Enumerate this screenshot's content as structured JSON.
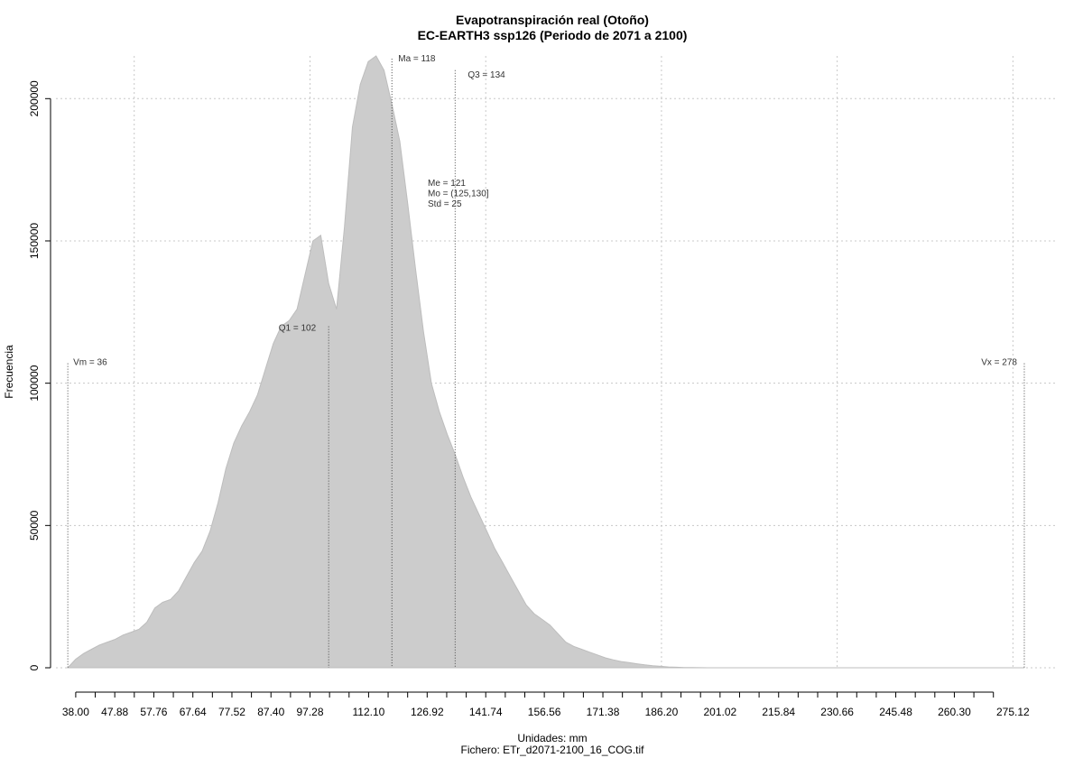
{
  "chart_data": {
    "type": "area",
    "title": "Evapotranspiración real (Otoño)",
    "subtitle": "EC-EARTH3 ssp126 (Periodo de 2071 a 2100)",
    "xlabel": "Unidades: mm",
    "footer": "Fichero: ETr_d2071-2100_16_COG.tif",
    "ylabel": "Frecuencia",
    "xlim": [
      33,
      286
    ],
    "ylim": [
      0,
      215000
    ],
    "grid": true,
    "fill_color": "#cccccc",
    "x_ticks": [
      "38.00",
      "47.88",
      "57.76",
      "67.64",
      "77.52",
      "87.40",
      "97.28",
      "112.10",
      "126.92",
      "141.74",
      "156.56",
      "171.38",
      "186.20",
      "201.02",
      "215.84",
      "230.66",
      "245.48",
      "260.30",
      "275.12"
    ],
    "y_ticks": [
      "0",
      "50000",
      "100000",
      "150000",
      "200000"
    ],
    "x": [
      36,
      38,
      40,
      42,
      44,
      46,
      48,
      50,
      52,
      54,
      56,
      58,
      60,
      62,
      64,
      66,
      68,
      70,
      72,
      74,
      76,
      78,
      80,
      82,
      84,
      86,
      88,
      90,
      92,
      94,
      96,
      98,
      100,
      102,
      104,
      106,
      108,
      110,
      112,
      114,
      116,
      118,
      120,
      122,
      124,
      126,
      128,
      130,
      132,
      134,
      136,
      138,
      140,
      142,
      144,
      146,
      148,
      150,
      152,
      154,
      156,
      158,
      160,
      162,
      164,
      166,
      168,
      170,
      172,
      174,
      176,
      178,
      180,
      182,
      184,
      186,
      188,
      190,
      192,
      194,
      196,
      198,
      200,
      205,
      210,
      220,
      240,
      260,
      278
    ],
    "values": [
      0,
      3000,
      5000,
      6500,
      8000,
      9000,
      10000,
      11500,
      12500,
      13500,
      16000,
      21000,
      23000,
      24000,
      27000,
      32000,
      37000,
      41000,
      48000,
      58000,
      70000,
      79000,
      85000,
      90000,
      96000,
      105000,
      114000,
      120000,
      122000,
      126000,
      138000,
      150000,
      152000,
      135000,
      126000,
      155000,
      190000,
      205000,
      213000,
      215000,
      210000,
      198000,
      185000,
      163000,
      140000,
      118000,
      100000,
      90000,
      82000,
      75000,
      67000,
      60000,
      54000,
      48000,
      42000,
      37000,
      32000,
      27000,
      22000,
      19000,
      17000,
      15000,
      12000,
      9000,
      7500,
      6500,
      5500,
      4500,
      3500,
      2800,
      2200,
      1800,
      1400,
      1000,
      700,
      500,
      300,
      200,
      100,
      50,
      20,
      0,
      0,
      0,
      0,
      0,
      0,
      0,
      0
    ],
    "annotations": [
      {
        "label": "Vm = 36",
        "x": 36,
        "top": 107000
      },
      {
        "label": "Q1 = 102",
        "x": 102,
        "top": 120000
      },
      {
        "label": "Ma = 118",
        "x": 118,
        "top": 214000
      },
      {
        "label": "Q3 = 134",
        "x": 134,
        "top": 210000
      },
      {
        "label": "Vx = 278",
        "x": 278,
        "top": 107000
      }
    ],
    "stats": [
      "Me = 121",
      "Mo = (125,130]",
      "Std = 25"
    ]
  }
}
